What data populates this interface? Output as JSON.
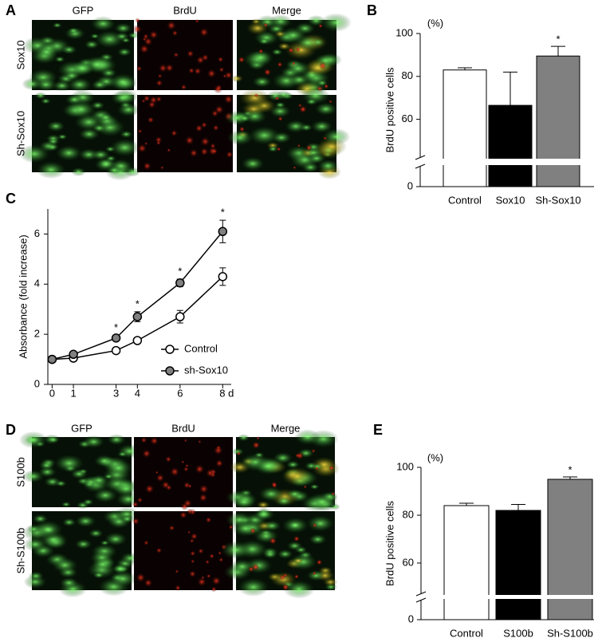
{
  "panel_labels": [
    "A",
    "B",
    "C",
    "D",
    "E"
  ],
  "image_panels": [
    {
      "columns": [
        "GFP",
        "BrdU",
        "Merge"
      ],
      "rows": [
        "Sox10",
        "Sh-Sox10"
      ]
    },
    {
      "columns": [
        "GFP",
        "BrdU",
        "Merge"
      ],
      "rows": [
        "S100b",
        "Sh-S100b"
      ]
    }
  ],
  "chart_data": [
    {
      "type": "bar",
      "ylabel": "BrdU positive cells",
      "unit_label": "(%)",
      "categories": [
        "Control",
        "Sox10",
        "Sh-Sox10"
      ],
      "values": [
        83,
        66.5,
        89.5
      ],
      "errors": [
        1,
        15.5,
        4.5
      ],
      "colors": [
        "#ffffff",
        "#000000",
        "#808080"
      ],
      "ylim": [
        0,
        100
      ],
      "ybreak": [
        9,
        42
      ],
      "yticks": [
        0,
        60,
        80,
        100
      ],
      "annotations": [
        {
          "text": "*",
          "category": 2
        }
      ]
    },
    {
      "type": "line",
      "ylabel": "Absorbance (fold increase)",
      "x": [
        0,
        1,
        3,
        4,
        6,
        8
      ],
      "series": [
        {
          "name": "Control",
          "color": "#ffffff",
          "values": [
            1.0,
            1.05,
            1.35,
            1.75,
            2.7,
            4.3
          ],
          "errors": [
            0.05,
            0.05,
            0.08,
            0.08,
            0.25,
            0.35
          ]
        },
        {
          "name": "sh-Sox10",
          "color": "#808080",
          "values": [
            1.0,
            1.2,
            1.85,
            2.7,
            4.05,
            6.1
          ],
          "errors": [
            0.05,
            0.08,
            0.1,
            0.2,
            0.15,
            0.45
          ]
        }
      ],
      "xlim": [
        -0.2,
        8.4
      ],
      "xticks": [
        0,
        1,
        3,
        4,
        6,
        {
          "value": 8,
          "label": "8 d"
        }
      ],
      "ylim": [
        0,
        7
      ],
      "yticks": [
        0,
        2,
        4,
        6
      ],
      "legend": "lower-right",
      "annotations": [
        {
          "text": "*",
          "x": 3,
          "series": 1
        },
        {
          "text": "*",
          "x": 4,
          "series": 1
        },
        {
          "text": "*",
          "x": 6,
          "series": 1
        },
        {
          "text": "*",
          "x": 8,
          "series": 1
        }
      ]
    },
    {
      "type": "bar",
      "ylabel": "BrdU positive cells",
      "unit_label": "(%)",
      "categories": [
        "Control",
        "S100b",
        "Sh-S100b"
      ],
      "values": [
        84,
        82,
        95
      ],
      "errors": [
        1,
        2.5,
        1
      ],
      "colors": [
        "#ffffff",
        "#000000",
        "#808080"
      ],
      "ylim": [
        0,
        100
      ],
      "ybreak": [
        8,
        47
      ],
      "yticks": [
        0,
        60,
        80,
        100
      ],
      "annotations": [
        {
          "text": "*",
          "category": 2
        }
      ]
    }
  ]
}
